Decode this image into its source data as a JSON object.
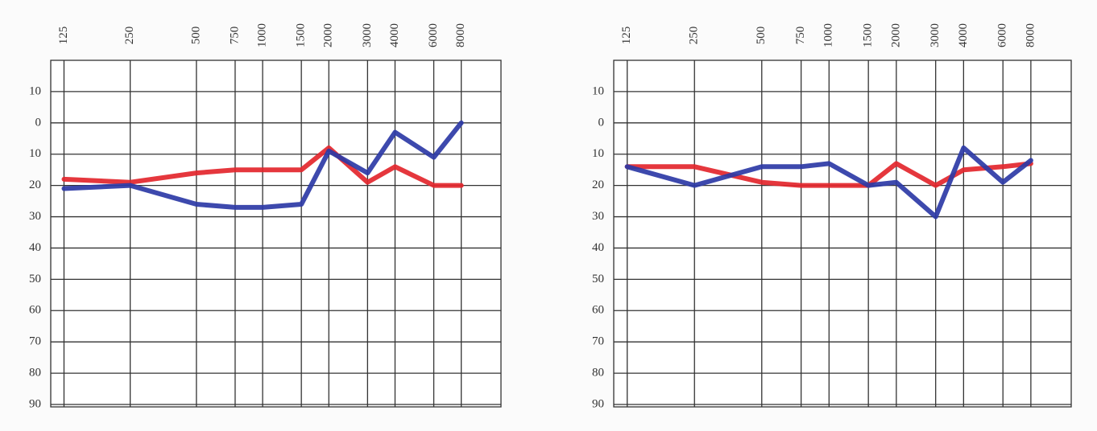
{
  "chart_data": [
    {
      "type": "line",
      "xscale": "log",
      "grid": true,
      "x": [
        125,
        250,
        500,
        750,
        1000,
        1500,
        2000,
        3000,
        4000,
        6000,
        8000
      ],
      "xlim": [
        108.8,
        12126
      ],
      "xticks": [
        125,
        250,
        500,
        750,
        1000,
        1500,
        2000,
        3000,
        4000,
        6000,
        8000
      ],
      "ylim": [
        -20,
        90
      ],
      "yinverted": true,
      "yticks": [
        {
          "value": -10,
          "label": "10"
        },
        0,
        10,
        20,
        30,
        40,
        50,
        60,
        70,
        80,
        90
      ],
      "series": [
        {
          "color": "#e3262d",
          "values": [
            18,
            19,
            16,
            15,
            15,
            15,
            8,
            19,
            14,
            20,
            20
          ]
        },
        {
          "color": "#2c3aa6",
          "values": [
            21,
            20,
            26,
            27,
            27,
            26,
            9,
            16,
            3,
            11,
            0
          ]
        }
      ]
    },
    {
      "type": "line",
      "xscale": "log",
      "grid": true,
      "x": [
        125,
        250,
        500,
        750,
        1000,
        1500,
        2000,
        3000,
        4000,
        6000,
        8000
      ],
      "xlim": [
        108.8,
        12126
      ],
      "xticks": [
        125,
        250,
        500,
        750,
        1000,
        1500,
        2000,
        3000,
        4000,
        6000,
        8000
      ],
      "ylim": [
        -20,
        90
      ],
      "yinverted": true,
      "yticks": [
        {
          "value": -10,
          "label": "10"
        },
        0,
        10,
        20,
        30,
        40,
        50,
        60,
        70,
        80,
        90
      ],
      "series": [
        {
          "color": "#e3262d",
          "values": [
            14,
            14,
            19,
            20,
            20,
            20,
            13,
            20,
            15,
            14,
            13
          ]
        },
        {
          "color": "#2c3aa6",
          "values": [
            14,
            20,
            14,
            14,
            13,
            20,
            19,
            30,
            8,
            19,
            12
          ]
        }
      ]
    }
  ]
}
